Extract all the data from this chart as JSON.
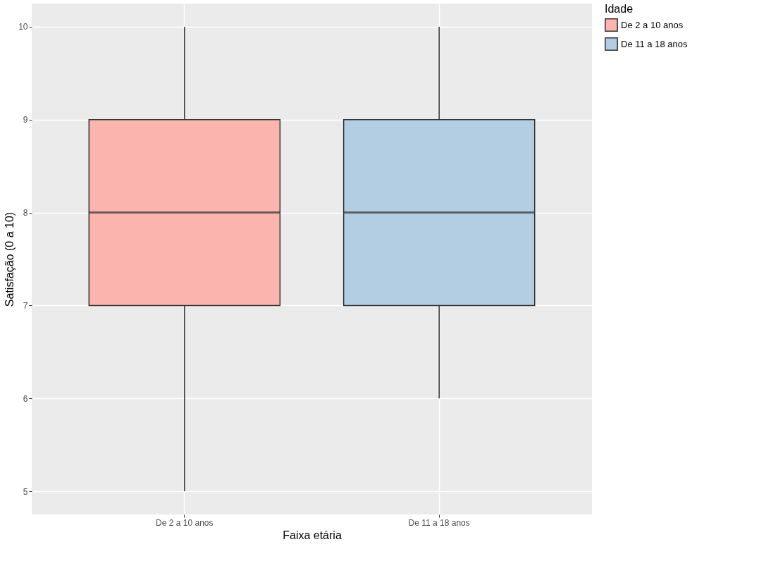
{
  "chart_data": {
    "type": "box",
    "xlabel": "Faixa etária",
    "ylabel": "Satisfação (0 a 10)",
    "legend_title": "Idade",
    "legend": "right",
    "grid": true,
    "categories": [
      "De 2 a 10 anos",
      "De 11 a 18 anos"
    ],
    "ylim": [
      4.75,
      10.25
    ],
    "yticks": [
      5,
      6,
      7,
      8,
      9,
      10
    ],
    "series": [
      {
        "name": "De 2 a 10 anos",
        "color": "#fbb4ae",
        "boxes": [
          {
            "low": 5,
            "q1": 7,
            "median": 8,
            "q3": 9,
            "high": 10
          },
          null
        ]
      },
      {
        "name": "De 11 a 18 anos",
        "color": "#b3cde3",
        "boxes": [
          null,
          {
            "low": 6,
            "q1": 7,
            "median": 8,
            "q3": 9,
            "high": 10
          }
        ]
      }
    ]
  }
}
